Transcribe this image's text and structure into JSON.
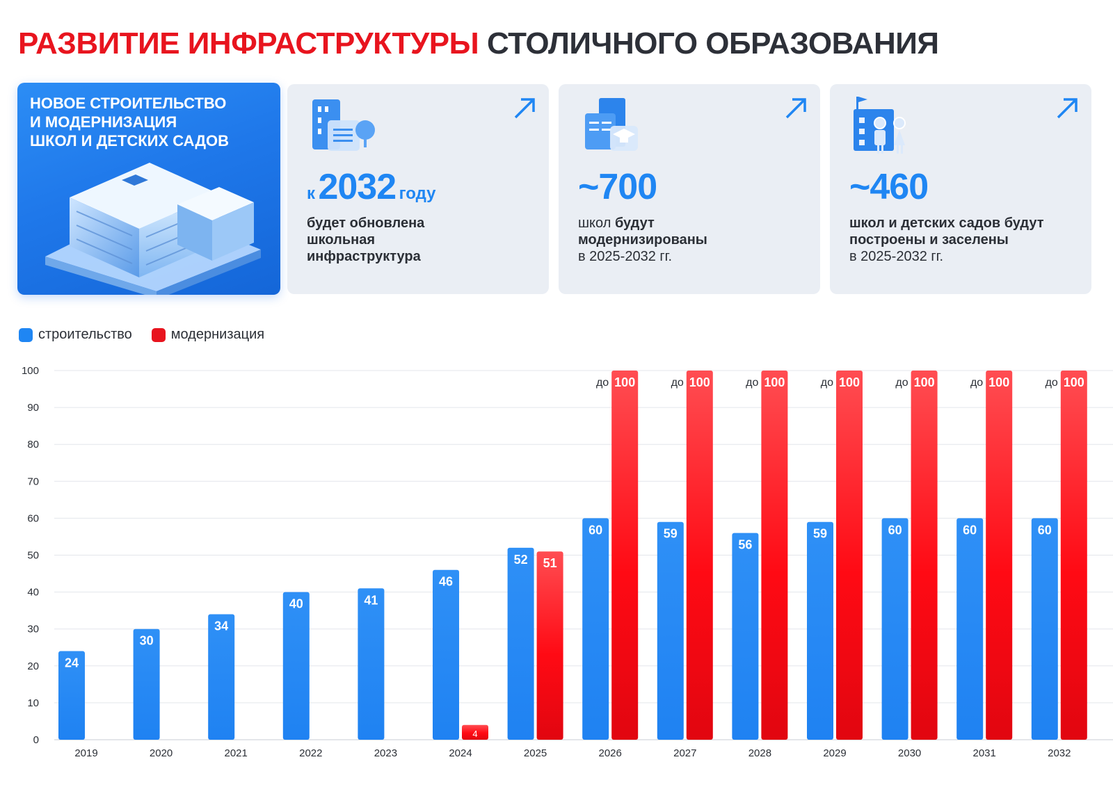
{
  "title": {
    "part1": "РАЗВИТИЕ ИНФРАСТРУКТУРЫ",
    "part2": "СТОЛИЧНОГО ОБРАЗОВАНИЯ"
  },
  "hero": {
    "lines": [
      "НОВОЕ СТРОИТЕЛЬСТВО",
      "И МОДЕРНИЗАЦИЯ",
      "ШКОЛ И ДЕТСКИХ САДОВ"
    ]
  },
  "cards": [
    {
      "icon": "school-building-icon",
      "pre": "к",
      "number": "2032",
      "post": "году",
      "desc": [
        "будет обновлена",
        "школьная",
        "инфраструктура"
      ]
    },
    {
      "icon": "graduation-building-icon",
      "pre": "",
      "number": "~700",
      "post": "",
      "desc_a": "школ",
      "desc_b": "будут",
      "desc_c": "модернизированы",
      "desc_d": "в 2025-2032 гг."
    },
    {
      "icon": "children-school-icon",
      "pre": "",
      "number": "~460",
      "post": "",
      "desc_a": "школ и детских садов будут",
      "desc_b": "построены и заселены",
      "desc_c": "в 2025-2032 гг."
    }
  ],
  "legend": {
    "construction": "строительство",
    "modernization": "модернизация"
  },
  "colors": {
    "red": "#e8141e",
    "blue": "#1f86f3",
    "dark": "#2d3038"
  },
  "chart_data": {
    "type": "bar",
    "categories": [
      "2019",
      "2020",
      "2021",
      "2022",
      "2023",
      "2024",
      "2025",
      "2026",
      "2027",
      "2028",
      "2029",
      "2030",
      "2031",
      "2032"
    ],
    "series": [
      {
        "name": "строительство",
        "color": "#1f86f3",
        "values": [
          24,
          30,
          34,
          40,
          41,
          46,
          52,
          60,
          59,
          56,
          59,
          60,
          60,
          60
        ],
        "labels": [
          "24",
          "30",
          "34",
          "40",
          "41",
          "46",
          "52",
          "60",
          "59",
          "56",
          "59",
          "60",
          "60",
          "60"
        ]
      },
      {
        "name": "модернизация",
        "color": "#e8141e",
        "values": [
          null,
          null,
          null,
          null,
          null,
          4,
          51,
          100,
          100,
          100,
          100,
          100,
          100,
          100
        ],
        "labels": [
          "",
          "",
          "",
          "",
          "",
          "4",
          "51",
          "100",
          "100",
          "100",
          "100",
          "100",
          "100",
          "100"
        ],
        "prefix": [
          "",
          "",
          "",
          "",
          "",
          "",
          "",
          "до",
          "до",
          "до",
          "до",
          "до",
          "до",
          "до"
        ]
      }
    ],
    "yticks": [
      0,
      10,
      20,
      30,
      40,
      50,
      60,
      70,
      80,
      90,
      100
    ],
    "ylim": [
      0,
      100
    ],
    "grid": true,
    "legend_position": "top-left"
  }
}
